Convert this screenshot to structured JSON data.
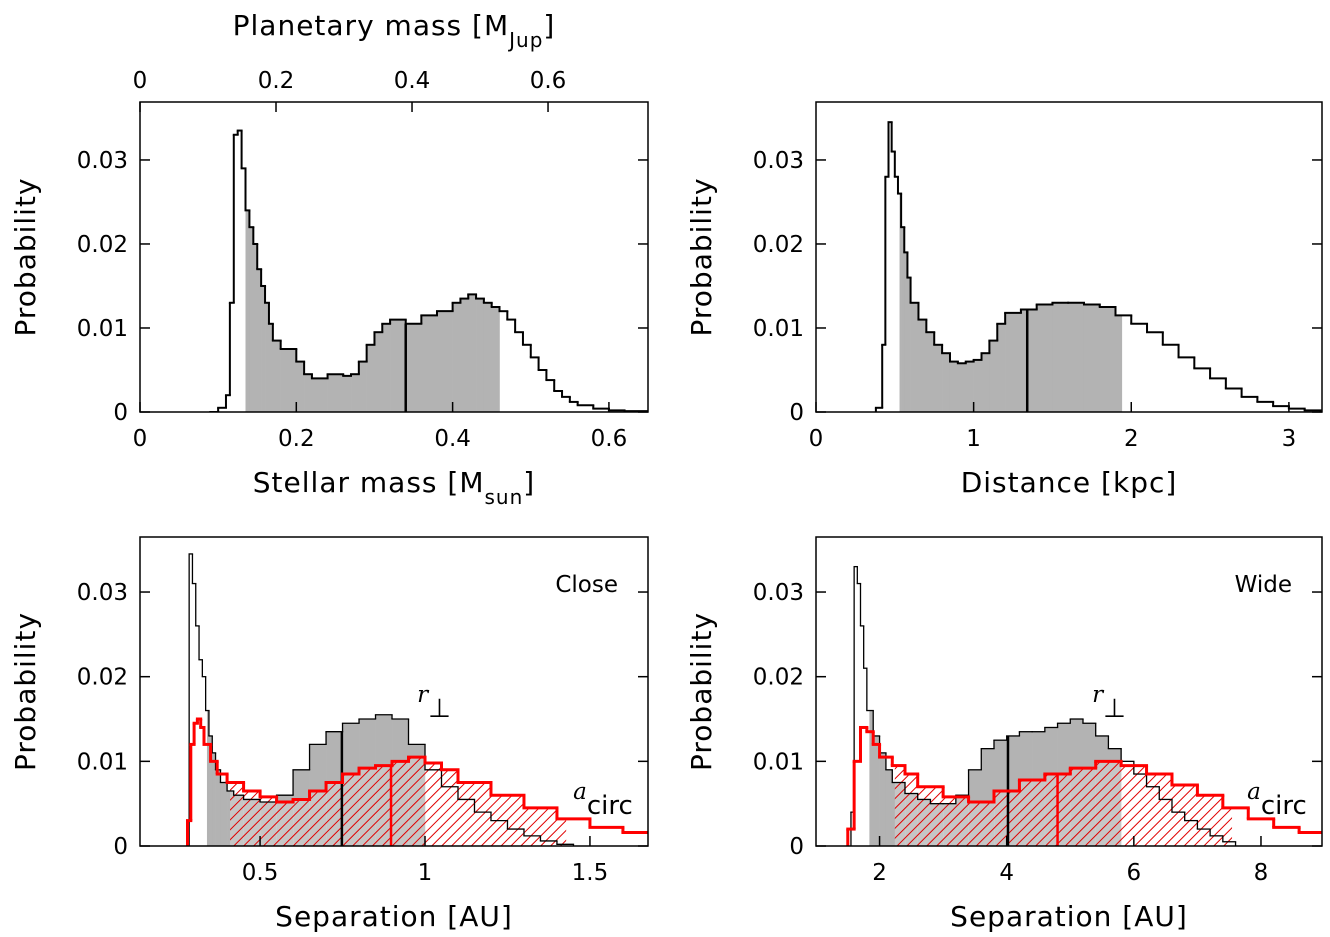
{
  "chart_data": [
    {
      "type": "step",
      "xlabel": [
        "Stellar mass [M",
        "sun",
        "]"
      ],
      "ylabel": "Probability",
      "x2label": [
        "Planetary mass [M",
        "Jup",
        "]"
      ],
      "x2lim": [
        0,
        0.747
      ],
      "x2ticks": [
        0,
        0.2,
        0.4,
        0.6
      ],
      "xlim": [
        0,
        0.65
      ],
      "xticks": [
        0,
        0.2,
        0.4,
        0.6
      ],
      "ylim": [
        0,
        0.0369
      ],
      "yticks": [
        0,
        0.01,
        0.02,
        0.03
      ],
      "series": [
        {
          "color": "#000000",
          "fill": "solid",
          "fill_color": "#b3b3b3",
          "shade": [
            0.135,
            0.46
          ],
          "median": 0.34,
          "bins": [
            0.09,
            0.1,
            0.11,
            0.115,
            0.12,
            0.125,
            0.13,
            0.135,
            0.14,
            0.145,
            0.15,
            0.155,
            0.16,
            0.165,
            0.17,
            0.18,
            0.19,
            0.2,
            0.21,
            0.22,
            0.24,
            0.26,
            0.27,
            0.28,
            0.29,
            0.3,
            0.31,
            0.32,
            0.34,
            0.36,
            0.38,
            0.4,
            0.41,
            0.42,
            0.43,
            0.44,
            0.45,
            0.46,
            0.47,
            0.48,
            0.49,
            0.5,
            0.51,
            0.52,
            0.53,
            0.54,
            0.55,
            0.56,
            0.58,
            0.6,
            0.62,
            0.65
          ],
          "values": [
            0,
            0.0005,
            0.002,
            0.013,
            0.033,
            0.0335,
            0.029,
            0.024,
            0.022,
            0.02,
            0.017,
            0.015,
            0.013,
            0.0105,
            0.0085,
            0.0075,
            0.0075,
            0.006,
            0.0045,
            0.004,
            0.0045,
            0.0043,
            0.0045,
            0.006,
            0.008,
            0.0095,
            0.0105,
            0.011,
            0.0105,
            0.0115,
            0.012,
            0.013,
            0.0135,
            0.014,
            0.0135,
            0.013,
            0.0125,
            0.012,
            0.011,
            0.0095,
            0.008,
            0.0065,
            0.005,
            0.0038,
            0.0025,
            0.0018,
            0.0012,
            0.0008,
            0.0004,
            0.0002,
            0.0001
          ]
        }
      ]
    },
    {
      "type": "step",
      "xlabel": [
        "Distance [kpc]"
      ],
      "ylabel": "Probability",
      "xlim": [
        0,
        3.21
      ],
      "xticks": [
        0,
        1,
        2,
        3
      ],
      "ylim": [
        0,
        0.0369
      ],
      "yticks": [
        0,
        0.01,
        0.02,
        0.03
      ],
      "series": [
        {
          "color": "#000000",
          "fill": "solid",
          "fill_color": "#b3b3b3",
          "shade": [
            0.53,
            1.94
          ],
          "median": 1.34,
          "bins": [
            0.38,
            0.42,
            0.44,
            0.46,
            0.48,
            0.5,
            0.52,
            0.54,
            0.56,
            0.58,
            0.6,
            0.65,
            0.7,
            0.75,
            0.8,
            0.85,
            0.9,
            0.95,
            1.0,
            1.05,
            1.1,
            1.15,
            1.2,
            1.3,
            1.4,
            1.5,
            1.6,
            1.7,
            1.8,
            1.9,
            2.0,
            2.1,
            2.2,
            2.3,
            2.4,
            2.5,
            2.6,
            2.7,
            2.8,
            2.9,
            3.0,
            3.1,
            3.2
          ],
          "values": [
            0.0005,
            0.008,
            0.028,
            0.0345,
            0.031,
            0.028,
            0.026,
            0.022,
            0.019,
            0.016,
            0.013,
            0.011,
            0.0095,
            0.008,
            0.007,
            0.006,
            0.0058,
            0.006,
            0.0062,
            0.007,
            0.0085,
            0.0105,
            0.0118,
            0.0122,
            0.0128,
            0.013,
            0.013,
            0.0128,
            0.0125,
            0.0115,
            0.0105,
            0.0095,
            0.008,
            0.0065,
            0.0052,
            0.004,
            0.0028,
            0.0018,
            0.0012,
            0.0007,
            0.0004,
            0.0002
          ]
        }
      ]
    },
    {
      "type": "step",
      "xlabel": [
        "Separation [AU]"
      ],
      "ylabel": "Probability",
      "label": "Close",
      "xlim": [
        0.136,
        1.676
      ],
      "xticks": [
        0.5,
        1,
        1.5
      ],
      "ylim": [
        0,
        0.0365
      ],
      "yticks": [
        0,
        0.01,
        0.02,
        0.03
      ],
      "series": [
        {
          "name": [
            "r",
            "⊥"
          ],
          "color": "#000000",
          "fill": "solid",
          "fill_color": "#b3b3b3",
          "shade": [
            0.339,
            1.0
          ],
          "median": 0.748,
          "bins": [
            0.285,
            0.295,
            0.305,
            0.315,
            0.325,
            0.335,
            0.345,
            0.355,
            0.365,
            0.38,
            0.4,
            0.42,
            0.45,
            0.5,
            0.55,
            0.6,
            0.65,
            0.7,
            0.75,
            0.8,
            0.85,
            0.9,
            0.95,
            1.0,
            1.05,
            1.1,
            1.15,
            1.2,
            1.25,
            1.3,
            1.35,
            1.4,
            1.45
          ],
          "values": [
            0.0345,
            0.031,
            0.026,
            0.022,
            0.02,
            0.016,
            0.013,
            0.011,
            0.009,
            0.0075,
            0.0065,
            0.006,
            0.0055,
            0.0052,
            0.006,
            0.009,
            0.012,
            0.0135,
            0.0145,
            0.015,
            0.0155,
            0.015,
            0.012,
            0.009,
            0.007,
            0.0055,
            0.004,
            0.003,
            0.002,
            0.0012,
            0.0006,
            0.0002
          ]
        },
        {
          "name": [
            "a",
            "circ"
          ],
          "color": "#ff0000",
          "fill": "hatch",
          "fill_color": "#ff0000",
          "shade": [
            0.409,
            1.427
          ],
          "median": 0.897,
          "bins": [
            0.28,
            0.29,
            0.3,
            0.31,
            0.32,
            0.33,
            0.35,
            0.37,
            0.4,
            0.45,
            0.5,
            0.55,
            0.6,
            0.65,
            0.7,
            0.75,
            0.8,
            0.85,
            0.9,
            0.95,
            1.0,
            1.05,
            1.1,
            1.2,
            1.3,
            1.4,
            1.5,
            1.6,
            1.676
          ],
          "values": [
            0.003,
            0.012,
            0.0145,
            0.015,
            0.014,
            0.012,
            0.01,
            0.0085,
            0.0075,
            0.0065,
            0.0058,
            0.0052,
            0.0055,
            0.0065,
            0.0075,
            0.0085,
            0.0092,
            0.0095,
            0.01,
            0.0105,
            0.0098,
            0.009,
            0.0075,
            0.006,
            0.0045,
            0.0032,
            0.0022,
            0.0016
          ]
        }
      ]
    },
    {
      "type": "step",
      "xlabel": [
        "Separation [AU]"
      ],
      "ylabel": "Probability",
      "label": "Wide",
      "xlim": [
        1.0,
        8.96
      ],
      "xticks": [
        2,
        4,
        6,
        8
      ],
      "ylim": [
        0,
        0.0365
      ],
      "yticks": [
        0,
        0.01,
        0.02,
        0.03
      ],
      "series": [
        {
          "name": [
            "r",
            "⊥"
          ],
          "color": "#000000",
          "fill": "solid",
          "fill_color": "#b3b3b3",
          "shade": [
            1.84,
            5.8
          ],
          "median": 4.02,
          "bins": [
            1.55,
            1.6,
            1.65,
            1.7,
            1.75,
            1.8,
            1.9,
            2.0,
            2.1,
            2.2,
            2.4,
            2.6,
            2.8,
            3.0,
            3.2,
            3.4,
            3.6,
            3.8,
            4.0,
            4.2,
            4.4,
            4.6,
            4.8,
            5.0,
            5.2,
            5.4,
            5.6,
            5.8,
            6.0,
            6.2,
            6.4,
            6.6,
            6.8,
            7.0,
            7.2,
            7.4,
            7.6
          ],
          "values": [
            0.004,
            0.033,
            0.031,
            0.026,
            0.021,
            0.016,
            0.013,
            0.011,
            0.009,
            0.0075,
            0.0062,
            0.0055,
            0.005,
            0.005,
            0.006,
            0.009,
            0.0115,
            0.0125,
            0.013,
            0.0135,
            0.0135,
            0.014,
            0.0145,
            0.015,
            0.0145,
            0.013,
            0.0115,
            0.01,
            0.0085,
            0.007,
            0.0055,
            0.004,
            0.003,
            0.002,
            0.0012,
            0.0005
          ]
        },
        {
          "name": [
            "a",
            "circ"
          ],
          "color": "#ff0000",
          "fill": "hatch",
          "fill_color": "#ff0000",
          "shade": [
            2.24,
            7.54
          ],
          "median": 4.8,
          "bins": [
            1.5,
            1.6,
            1.7,
            1.8,
            1.9,
            2.0,
            2.2,
            2.4,
            2.6,
            3.0,
            3.4,
            3.8,
            4.2,
            4.6,
            5.0,
            5.4,
            5.8,
            6.2,
            6.6,
            7.0,
            7.4,
            7.8,
            8.2,
            8.6,
            8.96
          ],
          "values": [
            0.002,
            0.01,
            0.014,
            0.0135,
            0.012,
            0.0105,
            0.0095,
            0.0085,
            0.007,
            0.0058,
            0.0052,
            0.0065,
            0.0078,
            0.0085,
            0.0092,
            0.01,
            0.0095,
            0.0085,
            0.0072,
            0.006,
            0.0045,
            0.0032,
            0.0022,
            0.0016
          ]
        }
      ]
    }
  ]
}
